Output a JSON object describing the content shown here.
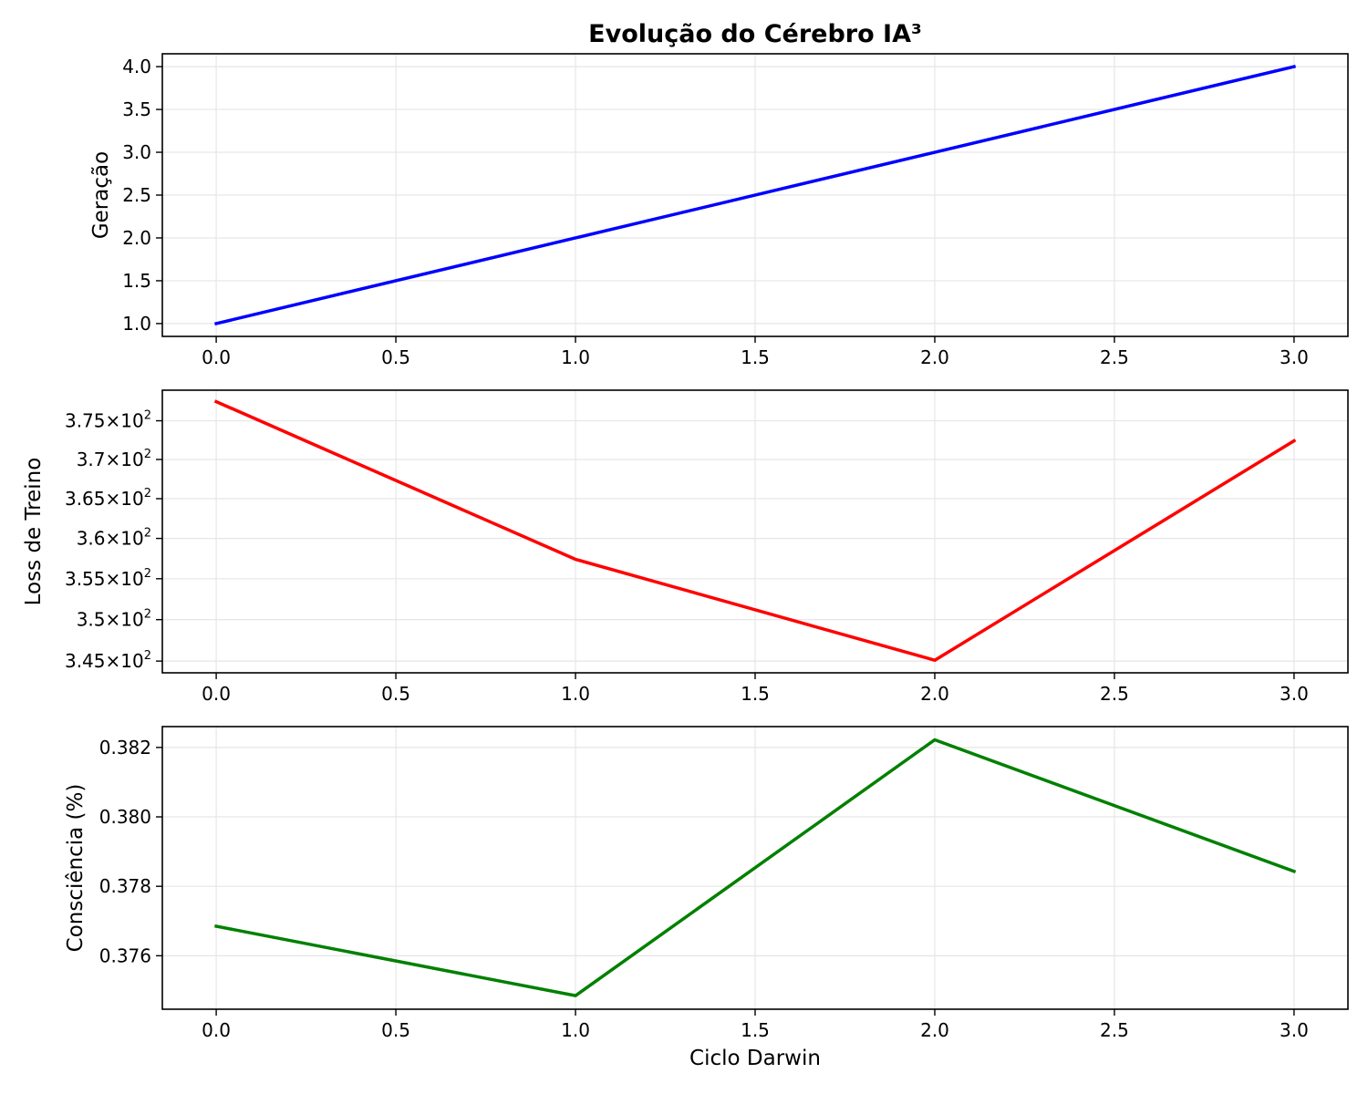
{
  "figure": {
    "title": "Evolução do Cérebro IA³",
    "xlabel": "Ciclo Darwin"
  },
  "chart_data": [
    {
      "type": "line",
      "title": "Evolução do Cérebro IA³",
      "xlabel": "",
      "ylabel": "Geração",
      "x": [
        0,
        1,
        2,
        3
      ],
      "series": [
        {
          "values": [
            1.0,
            2.0,
            3.0,
            4.0
          ],
          "color": "#0000ff"
        }
      ],
      "xlim": [
        -0.15,
        3.15
      ],
      "ylim": [
        0.85,
        4.15
      ],
      "xticks": [
        0.0,
        0.5,
        1.0,
        1.5,
        2.0,
        2.5,
        3.0
      ],
      "xtick_labels": [
        "0.0",
        "0.5",
        "1.0",
        "1.5",
        "2.0",
        "2.5",
        "3.0"
      ],
      "yscale": "linear",
      "yticks": [
        1.0,
        1.5,
        2.0,
        2.5,
        3.0,
        3.5,
        4.0
      ],
      "ytick_labels": [
        "1.0",
        "1.5",
        "2.0",
        "2.5",
        "3.0",
        "3.5",
        "4.0"
      ],
      "grid": true
    },
    {
      "type": "line",
      "xlabel": "",
      "ylabel": "Loss de Treino",
      "x": [
        0,
        1,
        2,
        3
      ],
      "series": [
        {
          "values": [
            377.5,
            357.4,
            345.1,
            372.4
          ],
          "color": "#ff0000"
        }
      ],
      "xlim": [
        -0.15,
        3.15
      ],
      "ylim": [
        343.6,
        379.0
      ],
      "xticks": [
        0.0,
        0.5,
        1.0,
        1.5,
        2.0,
        2.5,
        3.0
      ],
      "xtick_labels": [
        "0.0",
        "0.5",
        "1.0",
        "1.5",
        "2.0",
        "2.5",
        "3.0"
      ],
      "yscale": "log",
      "yticks": [
        345,
        350,
        355,
        360,
        365,
        370,
        375
      ],
      "ytick_labels": [
        {
          "mantissa": "3.45",
          "base": "10",
          "exp": "2"
        },
        {
          "mantissa": "3.5",
          "base": "10",
          "exp": "2"
        },
        {
          "mantissa": "3.55",
          "base": "10",
          "exp": "2"
        },
        {
          "mantissa": "3.6",
          "base": "10",
          "exp": "2"
        },
        {
          "mantissa": "3.65",
          "base": "10",
          "exp": "2"
        },
        {
          "mantissa": "3.7",
          "base": "10",
          "exp": "2"
        },
        {
          "mantissa": "3.75",
          "base": "10",
          "exp": "2"
        }
      ],
      "grid": true
    },
    {
      "type": "line",
      "xlabel": "Ciclo Darwin",
      "ylabel": "Consciência (%)",
      "x": [
        0,
        1,
        2,
        3
      ],
      "series": [
        {
          "values": [
            0.37685,
            0.37485,
            0.38222,
            0.37843
          ],
          "color": "#008000"
        }
      ],
      "xlim": [
        -0.15,
        3.15
      ],
      "ylim": [
        0.37446,
        0.3826
      ],
      "xticks": [
        0.0,
        0.5,
        1.0,
        1.5,
        2.0,
        2.5,
        3.0
      ],
      "xtick_labels": [
        "0.0",
        "0.5",
        "1.0",
        "1.5",
        "2.0",
        "2.5",
        "3.0"
      ],
      "yscale": "linear",
      "yticks": [
        0.376,
        0.378,
        0.38,
        0.382
      ],
      "ytick_labels": [
        "0.376",
        "0.378",
        "0.380",
        "0.382"
      ],
      "grid": true
    }
  ]
}
